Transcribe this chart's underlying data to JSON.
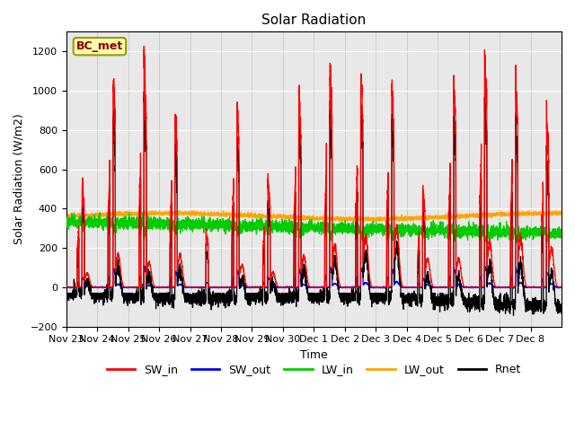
{
  "title": "Solar Radiation",
  "xlabel": "Time",
  "ylabel": "Solar Radiation (W/m2)",
  "ylim": [
    -200,
    1300
  ],
  "yticks": [
    -200,
    0,
    200,
    400,
    600,
    800,
    1000,
    1200
  ],
  "station_label": "BC_met",
  "legend": [
    "SW_in",
    "SW_out",
    "LW_in",
    "LW_out",
    "Rnet"
  ],
  "colors": {
    "SW_in": "#FF0000",
    "SW_out": "#0000FF",
    "LW_in": "#00CC00",
    "LW_out": "#FFA500",
    "Rnet": "#000000"
  },
  "bg_color": "#FFFFFF",
  "plot_bg_color": "#E8E8E8",
  "n_days": 16,
  "xtick_labels": [
    "Nov 23",
    "Nov 24",
    "Nov 25",
    "Nov 26",
    "Nov 27",
    "Nov 28",
    "Nov 29",
    "Nov 30",
    "Dec 1",
    "Dec 2",
    "Dec 3",
    "Dec 4",
    "Dec 5",
    "Dec 6",
    "Dec 7",
    "Dec 8"
  ],
  "SW_in_peaks": [
    520,
    1050,
    1130,
    880,
    280,
    900,
    530,
    990,
    1110,
    1060,
    1020,
    480,
    1050,
    1150,
    1050,
    860
  ],
  "SW_in_secondary": [
    230,
    560,
    420,
    550,
    0,
    370,
    250,
    525,
    675,
    860,
    1010,
    470,
    480,
    780,
    850,
    670
  ],
  "LW_out_base": 362,
  "LW_in_base": 315,
  "fontsize_title": 11,
  "fontsize_labels": 9,
  "fontsize_ticks": 8,
  "linewidth": 0.9
}
